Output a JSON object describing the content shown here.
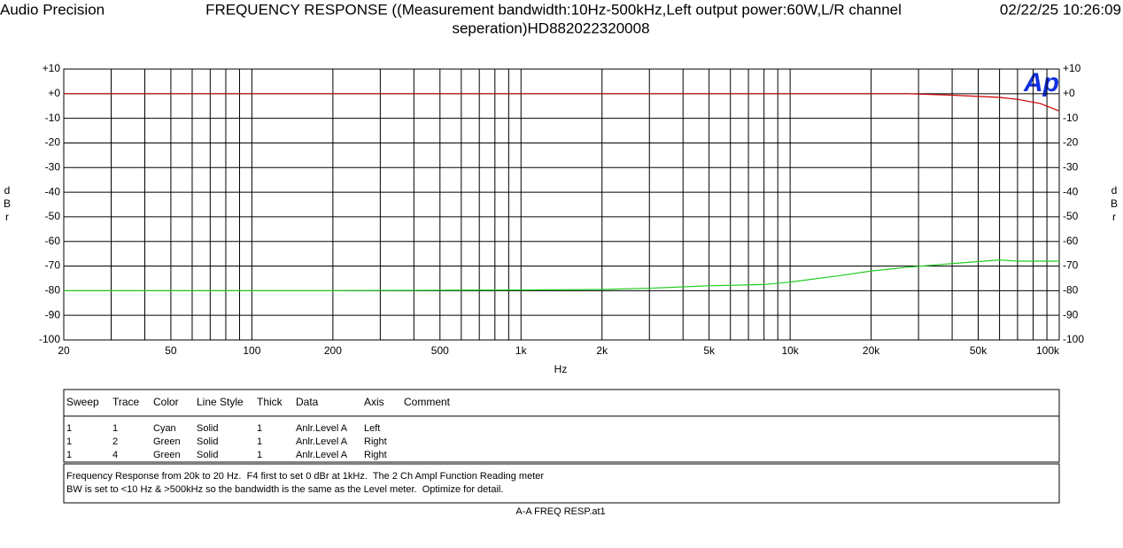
{
  "header": {
    "left": "Audio Precision",
    "date": "02/22/25 10:26:09"
  },
  "chart_data": {
    "type": "line",
    "title_lines": [
      "FREQUENCY RESPONSE ((Measurement bandwidth:10Hz-500kHz,Left output power:60W,L/R channel",
      "seperation)HD882022320008"
    ],
    "logo": "Ap",
    "x_label": "Hz",
    "y_label": "dBr",
    "xscale": "log",
    "xlim": [
      20,
      100000
    ],
    "xticks": [
      20,
      50,
      100,
      200,
      500,
      {
        "value": 1000,
        "label": "1k"
      },
      {
        "value": 2000,
        "label": "2k"
      },
      {
        "value": 5000,
        "label": "5k"
      },
      {
        "value": 10000,
        "label": "10k"
      },
      {
        "value": 20000,
        "label": "20k"
      },
      {
        "value": 50000,
        "label": "50k"
      },
      {
        "value": 100000,
        "label": "100k"
      }
    ],
    "xgrid_minor": [
      30,
      40,
      60,
      70,
      80,
      90,
      300,
      400,
      600,
      700,
      800,
      900,
      3000,
      4000,
      6000,
      7000,
      8000,
      9000,
      30000,
      40000,
      60000,
      70000,
      80000,
      90000
    ],
    "ylim": [
      -100,
      10
    ],
    "yticks": [
      {
        "value": 10,
        "label": "+10"
      },
      {
        "value": 0,
        "label": "+0"
      },
      -10,
      -20,
      -30,
      -40,
      -50,
      -60,
      -70,
      -80,
      -90,
      -100
    ],
    "grid": true,
    "x": [
      20,
      50,
      100,
      200,
      500,
      1000,
      2000,
      3000,
      5000,
      8000,
      10000,
      15000,
      20000,
      27000,
      40000,
      60000,
      70000,
      85000,
      100000
    ],
    "series": [
      {
        "color": "#cc0000",
        "values": [
          0,
          0,
          0,
          0,
          0,
          0,
          0,
          0,
          0,
          0,
          0,
          0,
          0,
          0,
          -0.6,
          -1.5,
          -2.3,
          -4,
          -7
        ]
      },
      {
        "color": "#22cc22",
        "values": [
          -80,
          -80,
          -80,
          -80,
          -79.8,
          -79.7,
          -79.5,
          -79,
          -78,
          -77.5,
          -76.5,
          -74,
          -72,
          -70.5,
          -69,
          -67.5,
          -68,
          -68,
          -68
        ]
      }
    ]
  },
  "table": {
    "columns": [
      "Sweep",
      "Trace",
      "Color",
      "Line Style",
      "Thick",
      "Data",
      "Axis",
      "Comment"
    ],
    "rows": [
      [
        "1",
        "1",
        "Cyan",
        "Solid",
        "1",
        "Anlr.Level A",
        "Left"
      ],
      [
        "1",
        "2",
        "Green",
        "Solid",
        "1",
        "Anlr.Level A",
        "Right"
      ],
      [
        "1",
        "4",
        "Green",
        "Solid",
        "1",
        "Anlr.Level A",
        "Right"
      ]
    ]
  },
  "comment": [
    "Frequency Response from 20k to 20 Hz.  F4 first to set 0 dBr at 1kHz.  The 2 Ch Ampl Function Reading meter",
    "BW is set to <10 Hz & >500kHz so the bandwidth is the same as the Level meter.  Optimize for detail."
  ],
  "footer": "A-A FREQ RESP.at1"
}
